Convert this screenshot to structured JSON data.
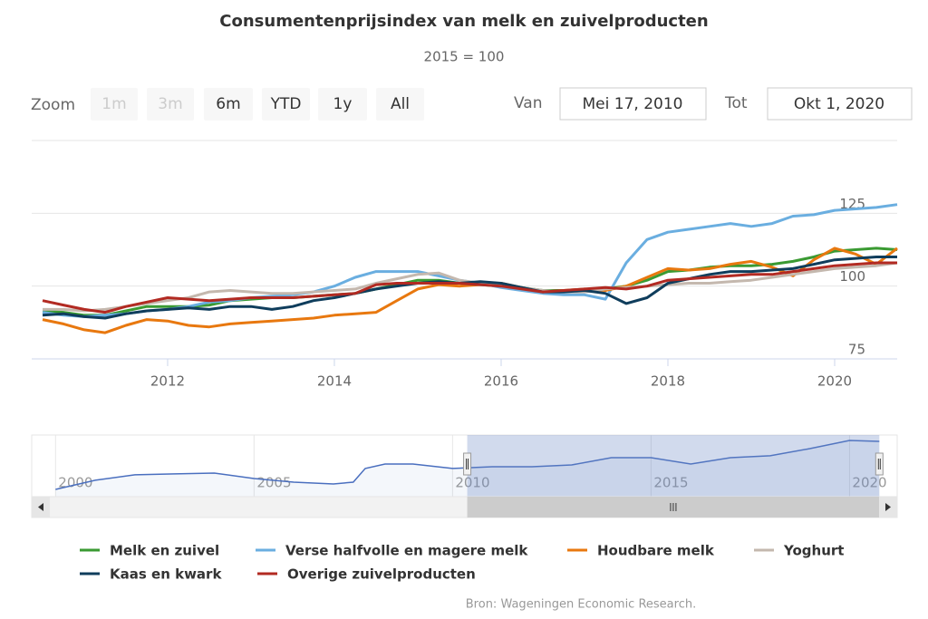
{
  "chart_data": {
    "type": "line",
    "title": "Consumentenprijsindex van melk en zuivelproducten",
    "subtitle": "2015 = 100",
    "range_selector": {
      "zoom_label": "Zoom",
      "buttons": [
        {
          "label": "1m",
          "enabled": false
        },
        {
          "label": "3m",
          "enabled": false
        },
        {
          "label": "6m",
          "enabled": true
        },
        {
          "label": "YTD",
          "enabled": true
        },
        {
          "label": "1y",
          "enabled": true
        },
        {
          "label": "All",
          "enabled": true
        }
      ],
      "from_label": "Van",
      "from": "Mei 17, 2010",
      "to_label": "Tot",
      "to": "Okt 1, 2020"
    },
    "x": [
      2010.5,
      2010.75,
      2011,
      2011.25,
      2011.5,
      2011.75,
      2012,
      2012.25,
      2012.5,
      2012.75,
      2013,
      2013.25,
      2013.5,
      2013.75,
      2014,
      2014.25,
      2014.5,
      2014.75,
      2015,
      2015.25,
      2015.5,
      2015.75,
      2016,
      2016.25,
      2016.5,
      2016.75,
      2017,
      2017.25,
      2017.5,
      2017.75,
      2018,
      2018.25,
      2018.5,
      2018.75,
      2019,
      2019.25,
      2019.5,
      2019.75,
      2020,
      2020.25,
      2020.5,
      2020.75
    ],
    "series": [
      {
        "name": "Melk en zuivel",
        "color": "#3a9a32",
        "values": [
          91.5,
          91,
          90,
          90,
          91.5,
          93,
          93,
          93,
          93.5,
          95,
          95.5,
          96,
          96,
          96.5,
          97,
          97.5,
          99,
          100.5,
          102,
          102,
          101,
          100.5,
          100,
          99.5,
          98.5,
          98.5,
          98.5,
          99,
          100,
          102,
          105,
          105.5,
          106.5,
          107,
          107,
          107.5,
          108.5,
          110,
          112,
          112.5,
          113,
          112.5
        ]
      },
      {
        "name": "Verse halfvolle en magere melk",
        "color": "#6aaee0",
        "values": [
          91,
          90,
          89.5,
          90,
          90.5,
          91.5,
          92,
          93,
          94.5,
          95,
          96,
          96.5,
          97,
          98,
          100,
          103,
          105,
          105,
          105,
          103.5,
          102,
          101,
          99.5,
          98.5,
          97.5,
          97,
          97,
          95.5,
          108,
          116,
          118.5,
          119.5,
          120.5,
          121.5,
          120.5,
          121.5,
          124,
          124.5,
          126,
          126.5,
          127,
          128
        ]
      },
      {
        "name": "Houdbare melk",
        "color": "#e8780f",
        "values": [
          88.5,
          87,
          85,
          84,
          86.5,
          88.5,
          88,
          86.5,
          86,
          87,
          87.5,
          88,
          88.5,
          89,
          90,
          90.5,
          91,
          95,
          99,
          100.5,
          100,
          100.5,
          101,
          99.5,
          98,
          98.5,
          99,
          98.5,
          100,
          103,
          106,
          105.5,
          106,
          107.5,
          108.5,
          106.5,
          103.5,
          109,
          113,
          111,
          107.5,
          113
        ]
      },
      {
        "name": "Yoghurt",
        "color": "#c4b8ae",
        "values": [
          92,
          92,
          91.5,
          92,
          93,
          94,
          95,
          96,
          98,
          98.5,
          98,
          97.5,
          97.5,
          98,
          98.5,
          99,
          101,
          102.5,
          104,
          104.5,
          102,
          101,
          100.5,
          99.5,
          98.5,
          98,
          98,
          99,
          99.5,
          100,
          100.5,
          101,
          101,
          101.5,
          102,
          103,
          104,
          105,
          106,
          106.5,
          107,
          108
        ]
      },
      {
        "name": "Kaas en kwark",
        "color": "#0f3d5c",
        "values": [
          90,
          90.5,
          89.5,
          89,
          90.5,
          91.5,
          92,
          92.5,
          92,
          93,
          93,
          92,
          93,
          95,
          96,
          97.5,
          99,
          100,
          101,
          101.5,
          101,
          101.5,
          101,
          99.5,
          98,
          98,
          98.5,
          97.5,
          94,
          96,
          101,
          102.5,
          104,
          105,
          105,
          105.5,
          106,
          107.5,
          109,
          109.5,
          110,
          110
        ]
      },
      {
        "name": "Overige zuivelproducten",
        "color": "#b22a22",
        "values": [
          95,
          93.5,
          92,
          91,
          93,
          94.5,
          96,
          95.5,
          95,
          95.5,
          96,
          96,
          96,
          96.5,
          97,
          97.5,
          100.5,
          101,
          101,
          101,
          101,
          100.5,
          100,
          99,
          98,
          98.5,
          99,
          99.5,
          99,
          100,
          102,
          102.5,
          103,
          103.5,
          104,
          104,
          105,
          106,
          107,
          107.5,
          108,
          108
        ]
      }
    ],
    "xlim": [
      2010.37,
      2020.75
    ],
    "xticks": [
      2012,
      2014,
      2016,
      2018,
      2020
    ],
    "ylim": [
      75,
      150
    ],
    "yticks": [
      75,
      100,
      125
    ],
    "grid": true,
    "navigator": {
      "color": "#4a6fbf",
      "x": [
        2000,
        2001,
        2002,
        2003,
        2004,
        2005,
        2006,
        2007,
        2007.5,
        2007.8,
        2008.3,
        2009,
        2010,
        2011,
        2012,
        2013,
        2014,
        2015,
        2016,
        2017,
        2018,
        2019,
        2020,
        2020.75
      ],
      "values": [
        74.4,
        81.6,
        85.9,
        86.6,
        87.3,
        83,
        80.1,
        78.7,
        80.1,
        90.9,
        94.4,
        94.4,
        90.9,
        92.3,
        92.3,
        93.7,
        99.4,
        99.4,
        94.4,
        99.4,
        100.9,
        106.6,
        113,
        112.3
      ],
      "xlim": [
        1999.4,
        2021.2
      ],
      "xticks": [
        2000,
        2005,
        2010,
        2015,
        2020
      ]
    },
    "credits": "Bron: Wageningen Economic Research."
  }
}
